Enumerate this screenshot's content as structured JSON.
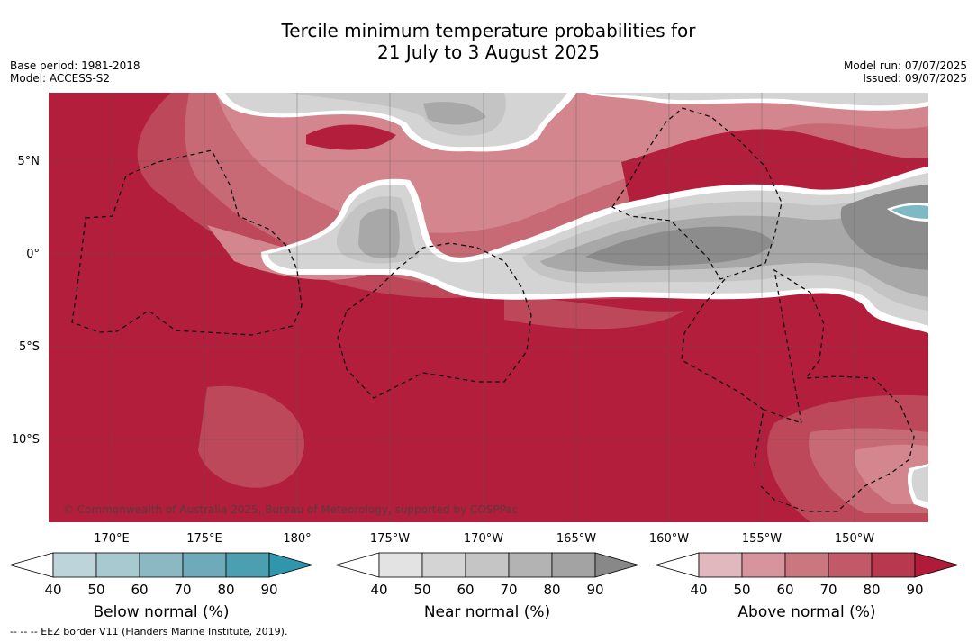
{
  "title": {
    "line1": "Tercile minimum temperature probabilities for",
    "line2": "21 July to 3 August 2025"
  },
  "meta_left": {
    "base_period": "Base period: 1981-2018",
    "model": "Model: ACCESS-S2"
  },
  "meta_right": {
    "model_run": "Model run: 07/07/2025",
    "issued": "Issued: 09/07/2025"
  },
  "map": {
    "lat_labels": [
      "5°N",
      "0°",
      "5°S",
      "10°S"
    ],
    "lon_labels": [
      "170°E",
      "175°E",
      "180°",
      "175°W",
      "170°W",
      "165°W",
      "160°W",
      "155°W",
      "150°W"
    ],
    "credit": "© Commonwealth of Australia 2025, Bureau of Meteorology, supported by COSPPac"
  },
  "colorbars": [
    {
      "title": "Below normal (%)",
      "ticks": [
        "40",
        "50",
        "60",
        "70",
        "80",
        "90"
      ],
      "colors": [
        "#ffffff",
        "#bcd4da",
        "#a7cad0",
        "#8cb8c3",
        "#6eaab9",
        "#4b9fb1",
        "#2f96ab"
      ]
    },
    {
      "title": "Near normal (%)",
      "ticks": [
        "40",
        "50",
        "60",
        "70",
        "80",
        "90"
      ],
      "colors": [
        "#ffffff",
        "#e3e3e3",
        "#d4d4d4",
        "#c5c5c5",
        "#b3b3b3",
        "#a3a3a3",
        "#888888"
      ]
    },
    {
      "title": "Above normal (%)",
      "ticks": [
        "40",
        "50",
        "60",
        "70",
        "80",
        "90"
      ],
      "colors": [
        "#ffffff",
        "#e1b8bd",
        "#d7949c",
        "#cb7780",
        "#c25968",
        "#b8394e",
        "#b01b3a"
      ]
    }
  ],
  "footnote": "--  --  -- EEZ border V11 (Flanders Marine Institute, 2019).",
  "palette": {
    "above_60": "#d4868f",
    "above_70": "#c86a75",
    "above_80": "#bd4859",
    "above_90": "#b21e3c",
    "near_50": "#d4d4d4",
    "near_60": "#c4c4c4",
    "near_70": "#a8a8a8",
    "near_80": "#8c8c8c",
    "below_70": "#7fb9c6"
  }
}
